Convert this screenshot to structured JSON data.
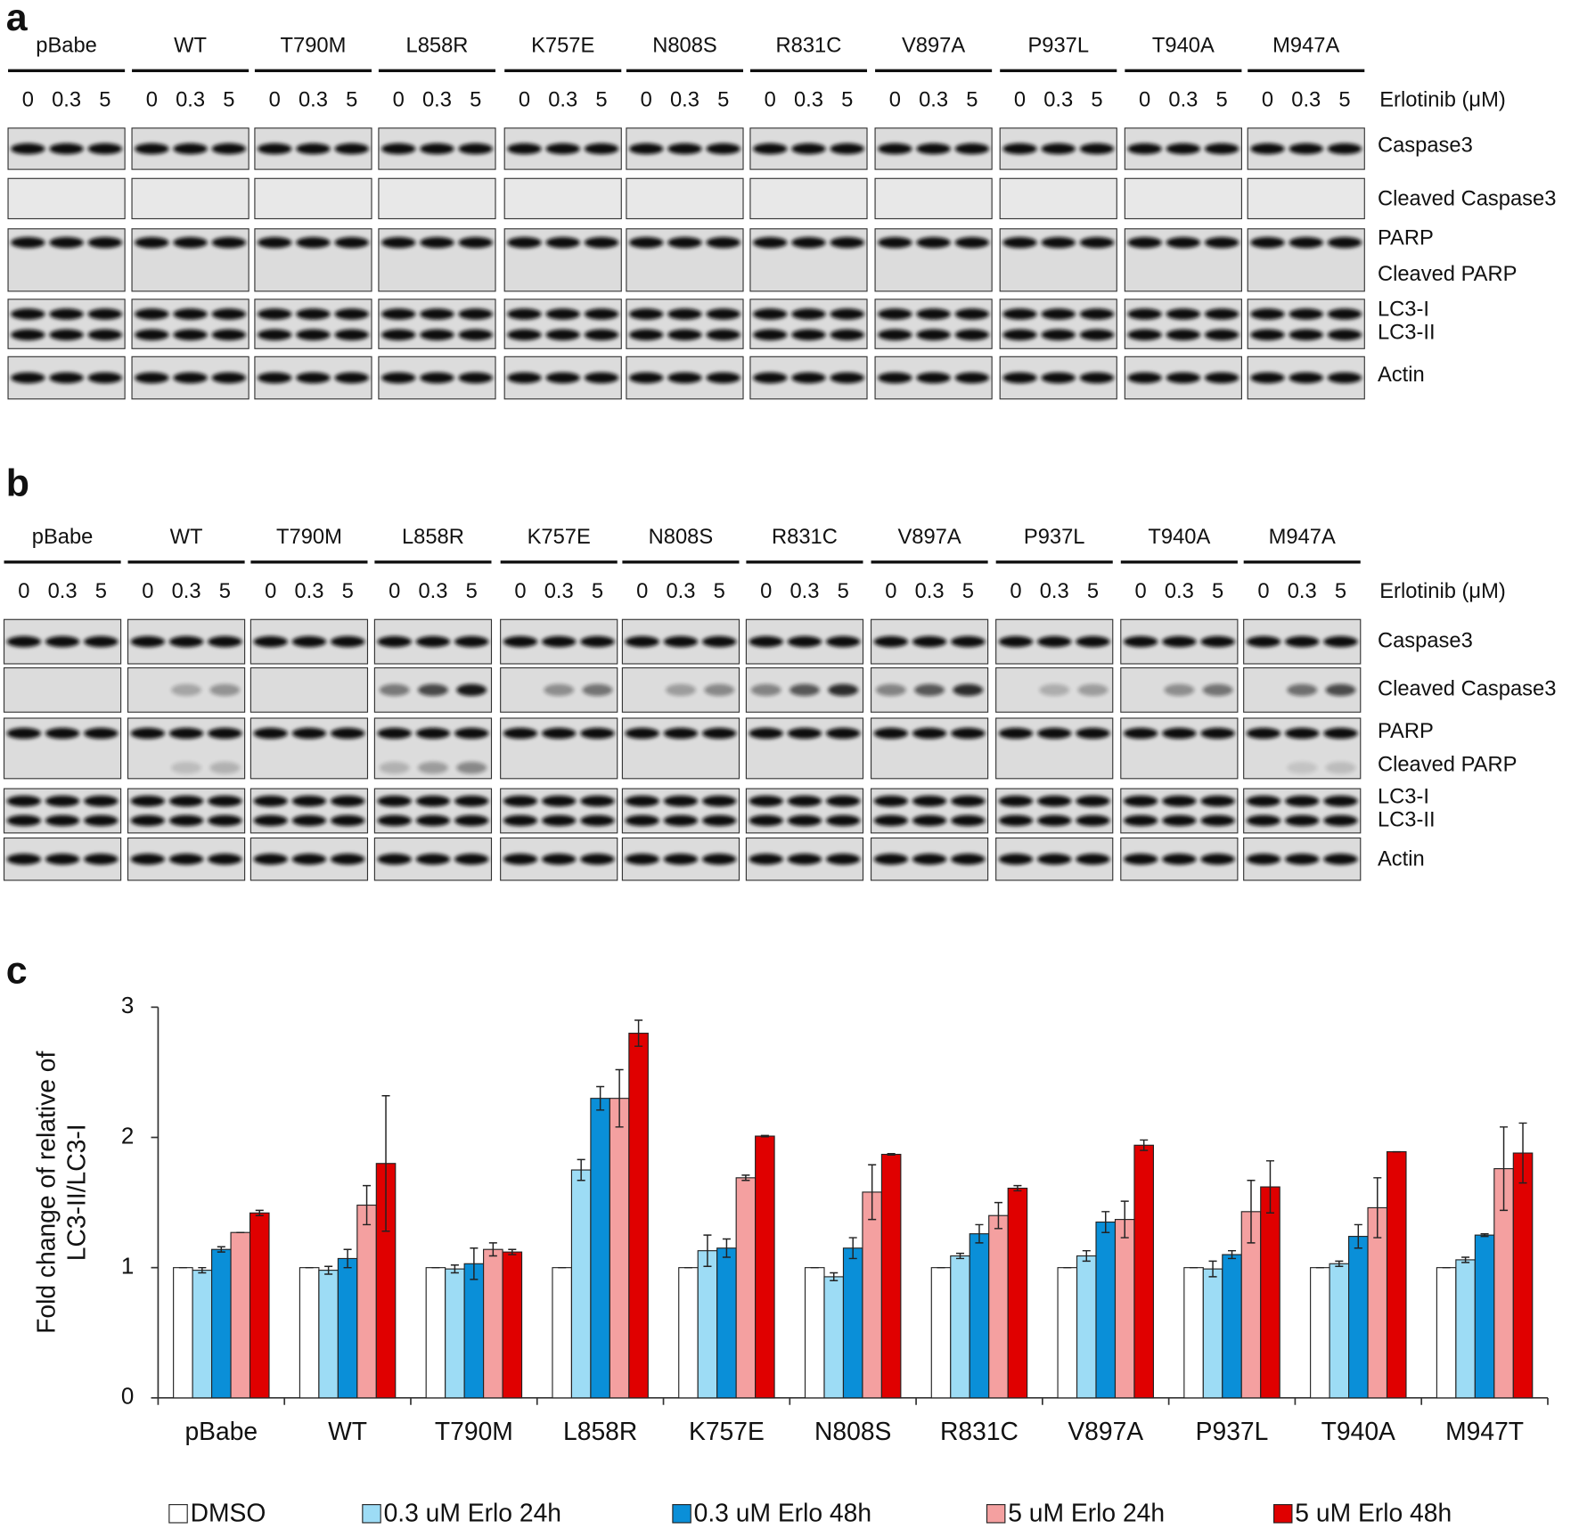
{
  "panels": [
    {
      "label": "a",
      "columns": [
        "pBabe",
        "WT",
        "T790M",
        "L858R",
        "K757E",
        "N808S",
        "R831C",
        "V897A",
        "P937L",
        "T940A",
        "M947A"
      ],
      "doses": [
        "0",
        "0.3",
        "5"
      ],
      "treatment": "Erlotinib (μM)",
      "bands": [
        "Caspase3",
        "Cleaved Caspase3",
        "PARP",
        "Cleaved PARP",
        "LC3-I",
        "LC3-II",
        "Actin"
      ]
    },
    {
      "label": "b",
      "columns": [
        "pBabe",
        "WT",
        "T790M",
        "L858R",
        "K757E",
        "N808S",
        "R831C",
        "V897A",
        "P937L",
        "T940A",
        "M947A"
      ],
      "doses": [
        "0",
        "0.3",
        "5"
      ],
      "treatment": "Erlotinib (μM)",
      "bands": [
        "Caspase3",
        "Cleaved Caspase3",
        "PARP",
        "Cleaved PARP",
        "LC3-I",
        "LC3-II",
        "Actin"
      ]
    }
  ],
  "chart_data": {
    "type": "bar",
    "label": "c",
    "y_label": [
      "Fold change of relative of",
      "LC3-II/LC3-I"
    ],
    "categories": [
      "pBabe",
      "WT",
      "T790M",
      "L858R",
      "K757E",
      "N808S",
      "R831C",
      "V897A",
      "P937L",
      "T940A",
      "M947T"
    ],
    "series": [
      {
        "name": "DMSO",
        "color": "#ffffff",
        "values": [
          1,
          1,
          1,
          1,
          1,
          1,
          1,
          1,
          1,
          1,
          1
        ],
        "errors": [
          0,
          0,
          0,
          0,
          0,
          0,
          0,
          0,
          0,
          0,
          0
        ]
      },
      {
        "name": "0.3 uM Erlo 24h",
        "color": "#9ddcf5",
        "values": [
          0.98,
          0.98,
          0.99,
          1.75,
          1.13,
          0.93,
          1.09,
          1.09,
          0.99,
          1.03,
          1.06
        ],
        "errors": [
          0.02,
          0.03,
          0.03,
          0.08,
          0.12,
          0.03,
          0.02,
          0.04,
          0.06,
          0.02,
          0.02
        ]
      },
      {
        "name": "0.3 uM Erlo 48h",
        "color": "#0a8fd8",
        "values": [
          1.14,
          1.07,
          1.03,
          2.3,
          1.15,
          1.15,
          1.26,
          1.35,
          1.1,
          1.24,
          1.25
        ],
        "errors": [
          0.02,
          0.07,
          0.12,
          0.09,
          0.07,
          0.08,
          0.07,
          0.08,
          0.03,
          0.09,
          0.01
        ]
      },
      {
        "name": "5 uM Erlo 24h",
        "color": "#f4a0a0",
        "values": [
          1.27,
          1.48,
          1.14,
          2.3,
          1.69,
          1.58,
          1.4,
          1.37,
          1.43,
          1.46,
          1.76
        ],
        "errors": [
          0,
          0.15,
          0.05,
          0.22,
          0.02,
          0.21,
          0.1,
          0.14,
          0.24,
          0.23,
          0.32
        ]
      },
      {
        "name": "5 uM Erlo 48h",
        "color": "#e00000",
        "values": [
          1.42,
          1.8,
          1.12,
          2.8,
          2.01,
          1.87,
          1.61,
          1.94,
          1.62,
          1.89,
          1.88
        ],
        "errors": [
          0.02,
          0.52,
          0.02,
          0.1,
          0.005,
          0.005,
          0.02,
          0.04,
          0.2,
          0,
          0.23
        ]
      }
    ],
    "ylim": [
      0,
      3
    ],
    "yticks": [
      0,
      1,
      2,
      3
    ],
    "legend": "bottom"
  }
}
